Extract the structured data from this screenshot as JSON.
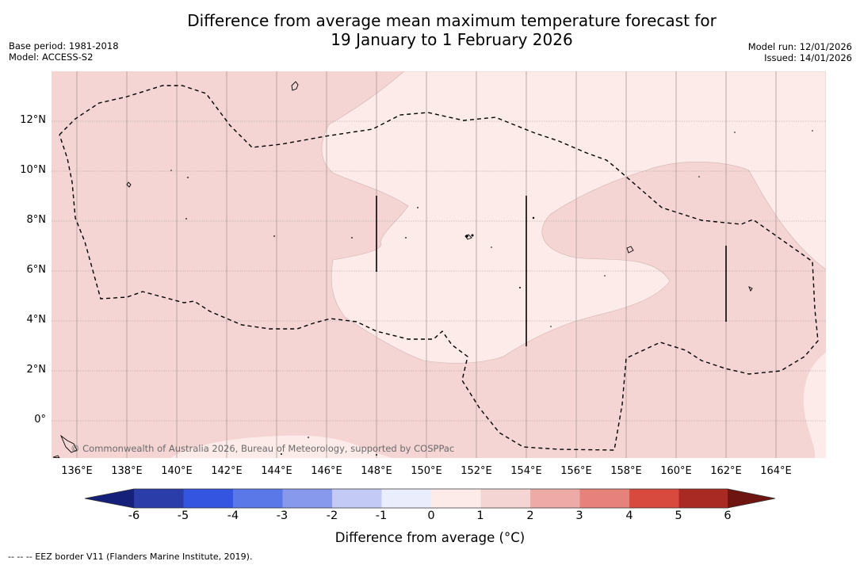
{
  "title": {
    "line1": "Difference from average mean maximum temperature forecast for",
    "line2": "19 January to 1 February 2026"
  },
  "meta_left": {
    "base_period": "Base period: 1981-2018",
    "model": "Model: ACCESS-S2"
  },
  "meta_right": {
    "model_run": "Model run: 12/01/2026",
    "issued": "Issued: 14/01/2026"
  },
  "map": {
    "lon_range": [
      135,
      166
    ],
    "lat_range": [
      -1.5,
      14
    ],
    "lon_ticks": [
      "136°E",
      "138°E",
      "140°E",
      "142°E",
      "144°E",
      "146°E",
      "148°E",
      "150°E",
      "152°E",
      "154°E",
      "156°E",
      "158°E",
      "160°E",
      "162°E",
      "164°E"
    ],
    "lat_ticks": [
      "12°N",
      "10°N",
      "8°N",
      "6°N",
      "4°N",
      "2°N",
      "0°"
    ],
    "copyright": "© Commonwealth of Australia 2026, Bureau of Meteorology, supported by COSPPac",
    "fill_colors": {
      "anomaly_1_2": "#f5d5d3",
      "anomaly_0_1": "#fcebe9"
    }
  },
  "colorbar": {
    "label": "Difference from average (°C)",
    "ticks": [
      "-6",
      "-5",
      "-4",
      "-3",
      "-2",
      "-1",
      "0",
      "1",
      "2",
      "3",
      "4",
      "5",
      "6"
    ],
    "colors": [
      "#14207a",
      "#2b3da8",
      "#3355e0",
      "#5a78e8",
      "#8699ec",
      "#c3caf5",
      "#eaedfb",
      "#fcebe9",
      "#f5d5d3",
      "#eeaaa6",
      "#e6827b",
      "#d84a3e",
      "#a82a22",
      "#6e1512"
    ]
  },
  "footnote": "--  --  -- EEZ border V11 (Flanders Marine Institute, 2019)."
}
